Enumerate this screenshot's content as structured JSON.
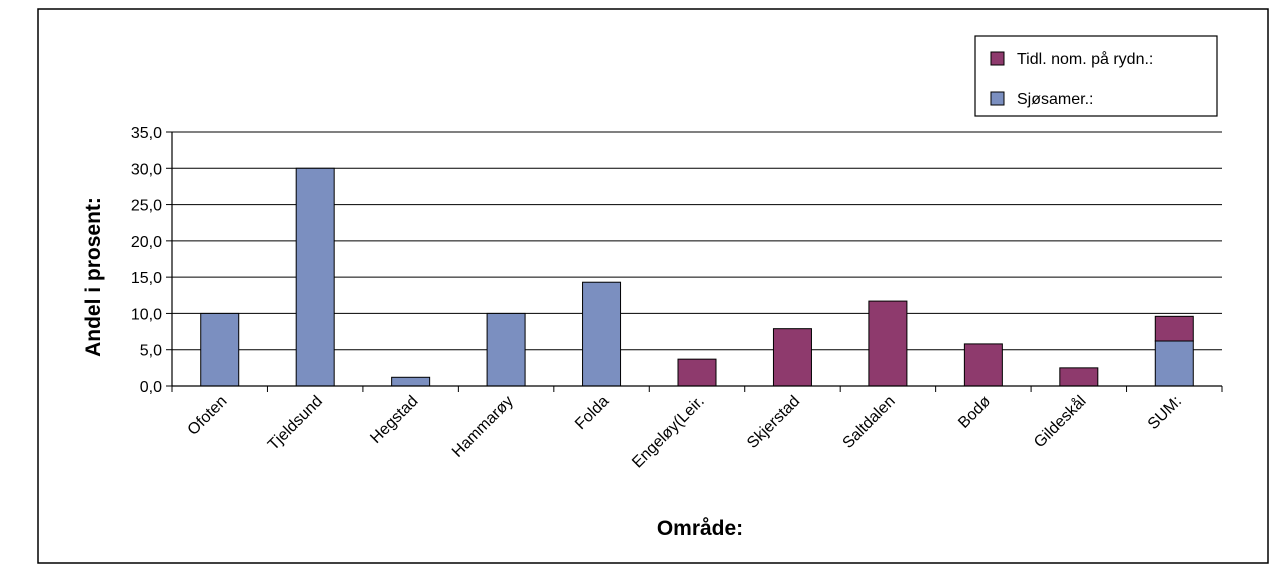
{
  "chart_data": {
    "type": "bar",
    "stacked": true,
    "xlabel": "Område:",
    "ylabel": "Andel i prosent:",
    "ylim": [
      0,
      35
    ],
    "yticks": [
      "0,0",
      "5,0",
      "10,0",
      "15,0",
      "20,0",
      "25,0",
      "30,0",
      "35,0"
    ],
    "grid": true,
    "legend_position": "top-right",
    "categories": [
      "Ofoten",
      "Tjeldsund",
      "Hegstad",
      "Hammarøy",
      "Folda",
      "Engeløy(Leir.",
      "Skjerstad",
      "Saltdalen",
      "Bodø",
      "Gildeskål",
      "SUM:"
    ],
    "series": [
      {
        "name": "Sjøsamer.:",
        "color": "#7b8fc0",
        "values": [
          10.0,
          30.0,
          1.2,
          10.0,
          14.3,
          0,
          0,
          0,
          0,
          0,
          6.2
        ]
      },
      {
        "name": "Tidl. nom. på rydn.:",
        "color": "#8e3a6d",
        "values": [
          0,
          0,
          0,
          0,
          0,
          3.7,
          7.9,
          11.7,
          5.8,
          2.5,
          3.4
        ]
      }
    ]
  }
}
